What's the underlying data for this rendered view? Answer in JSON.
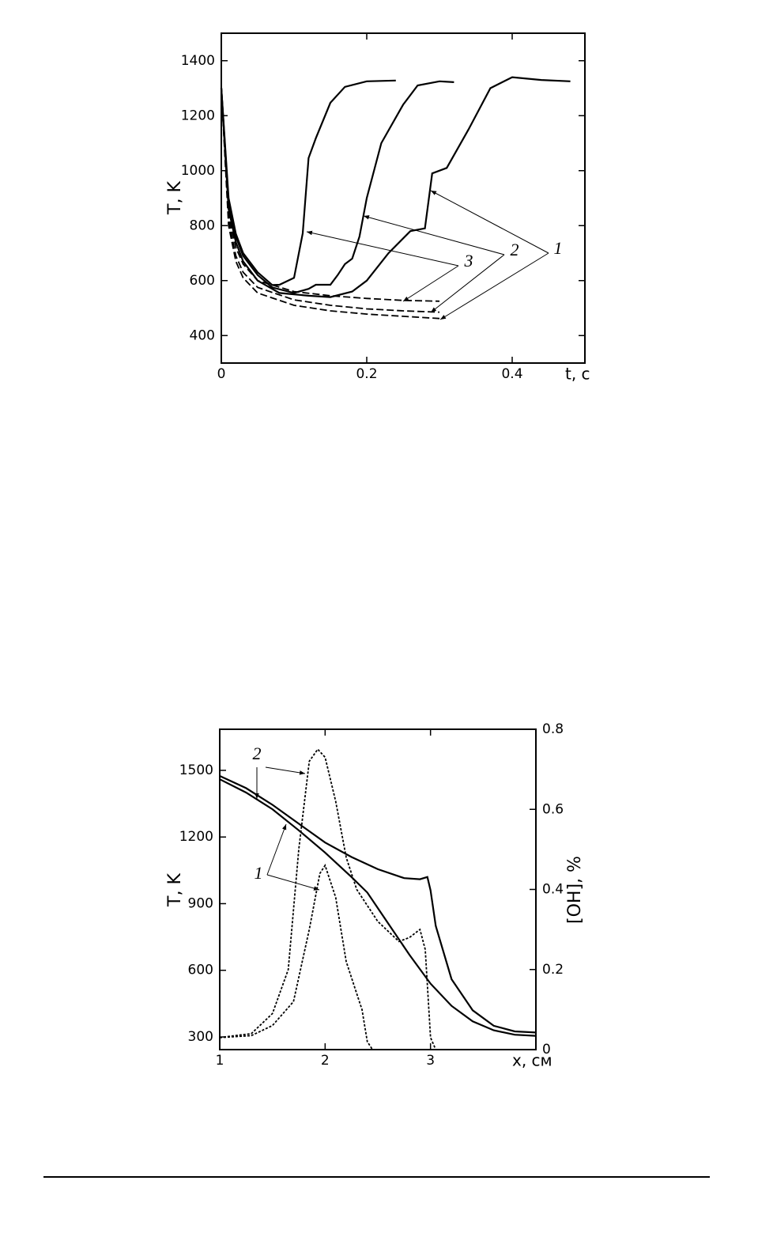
{
  "chart_data": [
    {
      "type": "line",
      "xlabel": "t, с",
      "ylabel": "T, K",
      "xlim": [
        0,
        0.5
      ],
      "ylim": [
        300,
        1500
      ],
      "xticks": [
        0,
        0.2,
        0.4
      ],
      "yticks": [
        400,
        600,
        800,
        1000,
        1200,
        1400
      ],
      "annotations": [
        "3",
        "2",
        "1"
      ],
      "series": [
        {
          "color": "#000000",
          "dash": "solid",
          "x": [
            0,
            0.01,
            0.02,
            0.03,
            0.05,
            0.07,
            0.08,
            0.1,
            0.112,
            0.12,
            0.13,
            0.15,
            0.17,
            0.2,
            0.24
          ],
          "values": [
            1300,
            900,
            770,
            700,
            630,
            584,
            585,
            610,
            772,
            1046,
            1118,
            1247,
            1305,
            1325,
            1328
          ]
        },
        {
          "color": "#000000",
          "dash": "solid",
          "x": [
            0,
            0.01,
            0.02,
            0.03,
            0.05,
            0.07,
            0.1,
            0.12,
            0.13,
            0.15,
            0.16,
            0.17,
            0.18,
            0.19,
            0.2,
            0.22,
            0.25,
            0.27,
            0.3,
            0.32
          ],
          "values": [
            1300,
            880,
            760,
            690,
            620,
            575,
            555,
            570,
            585,
            585,
            620,
            660,
            680,
            760,
            900,
            1100,
            1240,
            1310,
            1325,
            1322
          ]
        },
        {
          "color": "#000000",
          "dash": "solid",
          "x": [
            0,
            0.01,
            0.02,
            0.03,
            0.05,
            0.08,
            0.1,
            0.12,
            0.15,
            0.18,
            0.2,
            0.23,
            0.26,
            0.28,
            0.29,
            0.31,
            0.34,
            0.37,
            0.4,
            0.44,
            0.48
          ],
          "values": [
            1300,
            860,
            740,
            670,
            600,
            555,
            550,
            545,
            540,
            560,
            600,
            700,
            780,
            790,
            990,
            1010,
            1150,
            1300,
            1340,
            1330,
            1325
          ]
        },
        {
          "color": "#000000",
          "dash": "dashed",
          "x": [
            0,
            0.01,
            0.02,
            0.03,
            0.05,
            0.1,
            0.15,
            0.2,
            0.25,
            0.3
          ],
          "values": [
            1300,
            840,
            720,
            660,
            600,
            560,
            545,
            535,
            528,
            525
          ]
        },
        {
          "color": "#000000",
          "dash": "dashed",
          "x": [
            0,
            0.01,
            0.02,
            0.03,
            0.05,
            0.1,
            0.15,
            0.2,
            0.25,
            0.3
          ],
          "values": [
            1300,
            820,
            690,
            630,
            575,
            530,
            510,
            497,
            490,
            485
          ]
        },
        {
          "color": "#000000",
          "dash": "dashed",
          "x": [
            0,
            0.01,
            0.02,
            0.03,
            0.05,
            0.1,
            0.15,
            0.2,
            0.25,
            0.3
          ],
          "values": [
            1300,
            800,
            670,
            610,
            555,
            510,
            490,
            478,
            470,
            462
          ]
        }
      ]
    },
    {
      "type": "line",
      "xlabel": "x, см",
      "ylabel": "T, K",
      "y2label": "[OH], %",
      "xlim": [
        1,
        4
      ],
      "ylim": [
        243,
        1685
      ],
      "y2lim": [
        0,
        0.8
      ],
      "xticks": [
        1,
        2,
        3
      ],
      "yticks": [
        300,
        600,
        900,
        1200,
        1500
      ],
      "y2ticks": [
        0,
        0.2,
        0.4,
        0.6,
        0.8
      ],
      "annotations": [
        "2",
        "1"
      ],
      "series": [
        {
          "color": "#000000",
          "dash": "solid",
          "x": [
            1,
            1.25,
            1.5,
            1.75,
            2,
            2.25,
            2.5,
            2.75,
            2.9,
            2.97,
            3.0,
            3.05,
            3.2,
            3.4,
            3.6,
            3.8,
            4
          ],
          "values": [
            1475,
            1420,
            1345,
            1260,
            1175,
            1110,
            1055,
            1015,
            1010,
            1020,
            960,
            800,
            560,
            420,
            350,
            325,
            320
          ]
        },
        {
          "color": "#000000",
          "dash": "solid",
          "x": [
            1,
            1.25,
            1.5,
            1.75,
            2,
            2.25,
            2.4,
            2.6,
            2.8,
            3,
            3.2,
            3.4,
            3.6,
            3.8,
            4
          ],
          "values": [
            1460,
            1400,
            1325,
            1230,
            1130,
            1020,
            950,
            810,
            670,
            540,
            440,
            370,
            330,
            310,
            305
          ]
        },
        {
          "color": "#000000",
          "dash": "dotted",
          "axis": "y2",
          "x": [
            1,
            1.3,
            1.5,
            1.7,
            1.85,
            1.95,
            2.0,
            2.1,
            2.2,
            2.3,
            2.35,
            2.4,
            2.45,
            4
          ],
          "values": [
            0.03,
            0.035,
            0.06,
            0.12,
            0.3,
            0.44,
            0.46,
            0.38,
            0.22,
            0.14,
            0.1,
            0.02,
            0,
            0
          ]
        },
        {
          "color": "#000000",
          "dash": "dotted",
          "axis": "y2",
          "x": [
            1,
            1.3,
            1.5,
            1.65,
            1.75,
            1.85,
            1.93,
            2.0,
            2.1,
            2.2,
            2.3,
            2.5,
            2.7,
            2.8,
            2.9,
            2.95,
            3.0,
            3.05,
            4
          ],
          "values": [
            0.03,
            0.04,
            0.09,
            0.2,
            0.5,
            0.72,
            0.75,
            0.73,
            0.62,
            0.48,
            0.4,
            0.32,
            0.27,
            0.28,
            0.3,
            0.25,
            0.03,
            0,
            0
          ]
        }
      ]
    }
  ]
}
